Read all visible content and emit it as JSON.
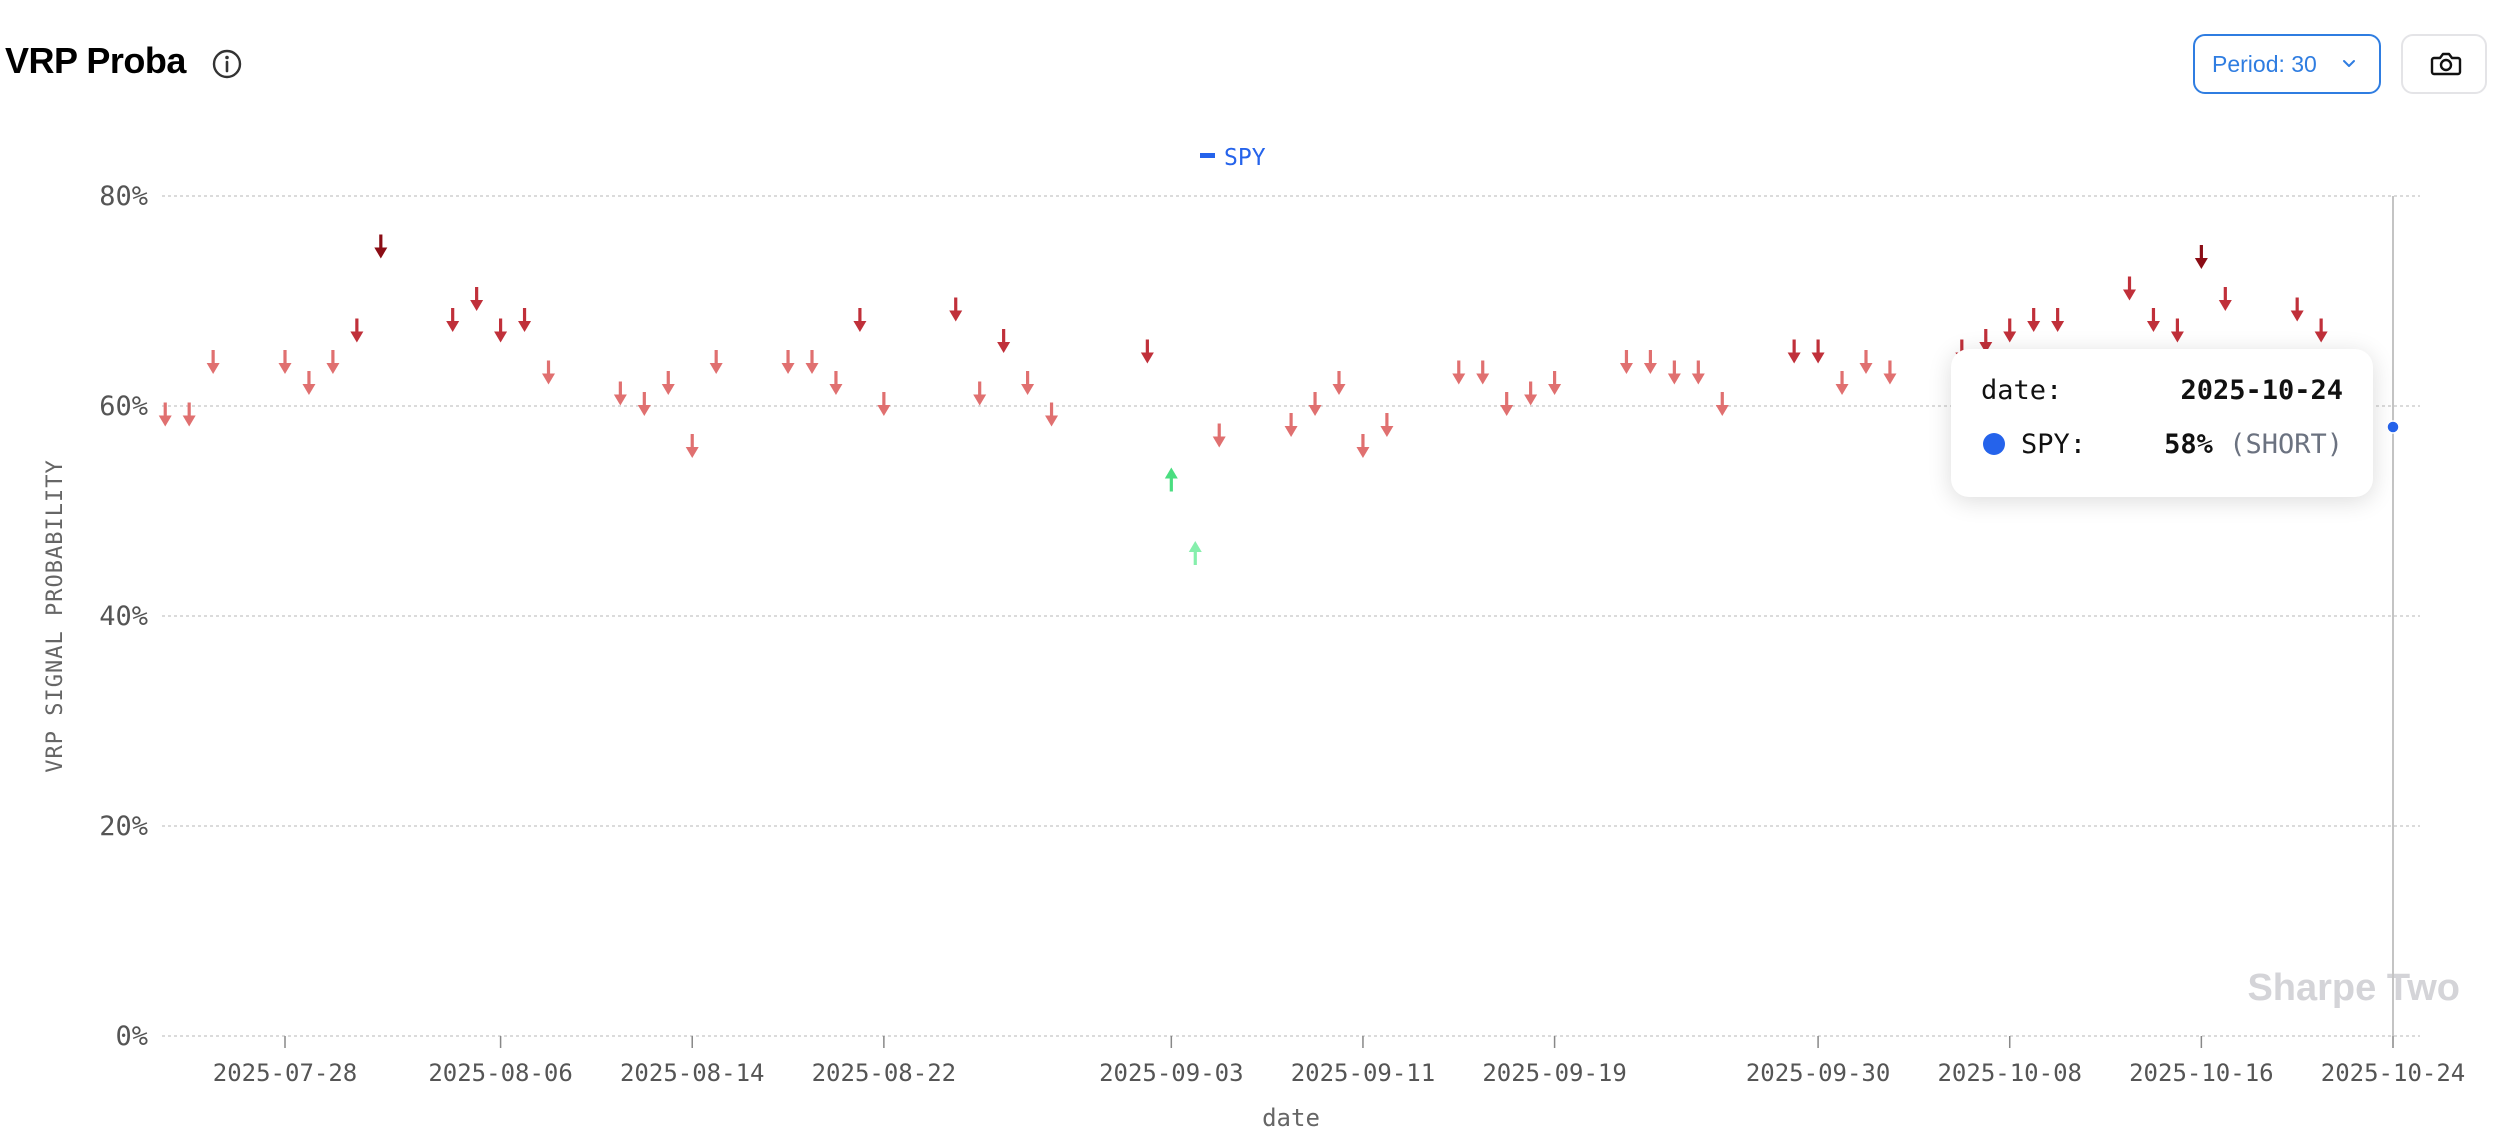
{
  "header": {
    "title": "VRP Proba",
    "period_label": "Period: 30"
  },
  "colors": {
    "series": "#2563eb",
    "short_light": "#e07070",
    "short_mid": "#c0303a",
    "short_dark": "#8b0d15",
    "long_light": "#86efac",
    "long_mid": "#4ade80",
    "grid": "#cfcfcf",
    "axis_text": "#555555"
  },
  "watermark": "Sharpe Two",
  "tooltip": {
    "date_label": "date:",
    "date_value": "2025-10-24",
    "series_label": "SPY:",
    "value_text": "58%",
    "signal_text": "(SHORT)"
  },
  "chart_data": {
    "type": "scatter",
    "title": "",
    "legend": [
      "SPY"
    ],
    "legend_position": "top-center",
    "xlabel": "date",
    "ylabel": "VRP SIGNAL PROBABILITY",
    "ylim": [
      0,
      80
    ],
    "y_ticks": [
      "0%",
      "20%",
      "40%",
      "60%",
      "80%"
    ],
    "x_ticks": [
      "2025-07-28",
      "2025-08-06",
      "2025-08-14",
      "2025-08-22",
      "2025-09-03",
      "2025-09-11",
      "2025-09-19",
      "2025-09-30",
      "2025-10-08",
      "2025-10-16",
      "2025-10-24"
    ],
    "grid": true,
    "series": [
      {
        "name": "SPY",
        "points": [
          {
            "date": "2025-07-23",
            "value": 59,
            "signal": "SHORT"
          },
          {
            "date": "2025-07-24",
            "value": 59,
            "signal": "SHORT"
          },
          {
            "date": "2025-07-25",
            "value": 64,
            "signal": "SHORT"
          },
          {
            "date": "2025-07-28",
            "value": 64,
            "signal": "SHORT"
          },
          {
            "date": "2025-07-29",
            "value": 62,
            "signal": "SHORT"
          },
          {
            "date": "2025-07-30",
            "value": 64,
            "signal": "SHORT"
          },
          {
            "date": "2025-07-31",
            "value": 67,
            "signal": "SHORT"
          },
          {
            "date": "2025-08-01",
            "value": 75,
            "signal": "SHORT"
          },
          {
            "date": "2025-08-04",
            "value": 68,
            "signal": "SHORT"
          },
          {
            "date": "2025-08-05",
            "value": 70,
            "signal": "SHORT"
          },
          {
            "date": "2025-08-06",
            "value": 67,
            "signal": "SHORT"
          },
          {
            "date": "2025-08-07",
            "value": 68,
            "signal": "SHORT"
          },
          {
            "date": "2025-08-08",
            "value": 63,
            "signal": "SHORT"
          },
          {
            "date": "2025-08-11",
            "value": 61,
            "signal": "SHORT"
          },
          {
            "date": "2025-08-12",
            "value": 60,
            "signal": "SHORT"
          },
          {
            "date": "2025-08-13",
            "value": 62,
            "signal": "SHORT"
          },
          {
            "date": "2025-08-14",
            "value": 56,
            "signal": "SHORT"
          },
          {
            "date": "2025-08-15",
            "value": 64,
            "signal": "SHORT"
          },
          {
            "date": "2025-08-18",
            "value": 64,
            "signal": "SHORT"
          },
          {
            "date": "2025-08-19",
            "value": 64,
            "signal": "SHORT"
          },
          {
            "date": "2025-08-20",
            "value": 62,
            "signal": "SHORT"
          },
          {
            "date": "2025-08-21",
            "value": 68,
            "signal": "SHORT"
          },
          {
            "date": "2025-08-22",
            "value": 60,
            "signal": "SHORT"
          },
          {
            "date": "2025-08-25",
            "value": 69,
            "signal": "SHORT"
          },
          {
            "date": "2025-08-26",
            "value": 61,
            "signal": "SHORT"
          },
          {
            "date": "2025-08-27",
            "value": 66,
            "signal": "SHORT"
          },
          {
            "date": "2025-08-28",
            "value": 62,
            "signal": "SHORT"
          },
          {
            "date": "2025-08-29",
            "value": 59,
            "signal": "SHORT"
          },
          {
            "date": "2025-09-02",
            "value": 65,
            "signal": "SHORT"
          },
          {
            "date": "2025-09-03",
            "value": 53,
            "signal": "LONG"
          },
          {
            "date": "2025-09-04",
            "value": 46,
            "signal": "LONG"
          },
          {
            "date": "2025-09-05",
            "value": 57,
            "signal": "SHORT"
          },
          {
            "date": "2025-09-08",
            "value": 58,
            "signal": "SHORT"
          },
          {
            "date": "2025-09-09",
            "value": 60,
            "signal": "SHORT"
          },
          {
            "date": "2025-09-10",
            "value": 62,
            "signal": "SHORT"
          },
          {
            "date": "2025-09-11",
            "value": 56,
            "signal": "SHORT"
          },
          {
            "date": "2025-09-12",
            "value": 58,
            "signal": "SHORT"
          },
          {
            "date": "2025-09-15",
            "value": 63,
            "signal": "SHORT"
          },
          {
            "date": "2025-09-16",
            "value": 63,
            "signal": "SHORT"
          },
          {
            "date": "2025-09-17",
            "value": 60,
            "signal": "SHORT"
          },
          {
            "date": "2025-09-18",
            "value": 61,
            "signal": "SHORT"
          },
          {
            "date": "2025-09-19",
            "value": 62,
            "signal": "SHORT"
          },
          {
            "date": "2025-09-22",
            "value": 64,
            "signal": "SHORT"
          },
          {
            "date": "2025-09-23",
            "value": 64,
            "signal": "SHORT"
          },
          {
            "date": "2025-09-24",
            "value": 63,
            "signal": "SHORT"
          },
          {
            "date": "2025-09-25",
            "value": 63,
            "signal": "SHORT"
          },
          {
            "date": "2025-09-26",
            "value": 60,
            "signal": "SHORT"
          },
          {
            "date": "2025-09-29",
            "value": 65,
            "signal": "SHORT"
          },
          {
            "date": "2025-09-30",
            "value": 65,
            "signal": "SHORT"
          },
          {
            "date": "2025-10-01",
            "value": 62,
            "signal": "SHORT"
          },
          {
            "date": "2025-10-02",
            "value": 64,
            "signal": "SHORT"
          },
          {
            "date": "2025-10-03",
            "value": 63,
            "signal": "SHORT"
          },
          {
            "date": "2025-10-06",
            "value": 65,
            "signal": "SHORT"
          },
          {
            "date": "2025-10-07",
            "value": 66,
            "signal": "SHORT"
          },
          {
            "date": "2025-10-08",
            "value": 67,
            "signal": "SHORT"
          },
          {
            "date": "2025-10-09",
            "value": 68,
            "signal": "SHORT"
          },
          {
            "date": "2025-10-10",
            "value": 68,
            "signal": "SHORT"
          },
          {
            "date": "2025-10-13",
            "value": 71,
            "signal": "SHORT"
          },
          {
            "date": "2025-10-14",
            "value": 68,
            "signal": "SHORT"
          },
          {
            "date": "2025-10-15",
            "value": 67,
            "signal": "SHORT"
          },
          {
            "date": "2025-10-16",
            "value": 74,
            "signal": "SHORT"
          },
          {
            "date": "2025-10-17",
            "value": 70,
            "signal": "SHORT"
          },
          {
            "date": "2025-10-20",
            "value": 69,
            "signal": "SHORT"
          },
          {
            "date": "2025-10-21",
            "value": 67,
            "signal": "SHORT"
          },
          {
            "date": "2025-10-24",
            "value": 58,
            "signal": "SHORT"
          }
        ]
      }
    ]
  }
}
